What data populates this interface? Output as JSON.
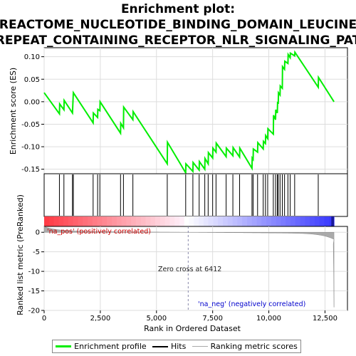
{
  "chart_data": {
    "type": "line",
    "title_lines": [
      "Enrichment plot:",
      "REACTOME_NUCLEOTIDE_BINDING_DOMAIN_LEUCINE",
      "REPEAT_CONTAINING_RECEPTOR_NLR_SIGNALING_PAT"
    ],
    "xlabel": "Rank in Ordered Dataset",
    "ylabel_top": "Enrichment score (ES)",
    "ylabel_bottom": "Ranked list metric (PreRanked)",
    "xlim": [
      0,
      13500
    ],
    "x_ticks": [
      0,
      2500,
      5000,
      7500,
      10000,
      12500
    ],
    "x_tick_labels": [
      "0",
      "2,500",
      "5,000",
      "7,500",
      "10,000",
      "12,500"
    ],
    "es_ylim": [
      -0.16,
      0.12
    ],
    "es_ticks": [
      -0.15,
      -0.1,
      -0.05,
      0.0,
      0.05,
      0.1
    ],
    "es_tick_labels": [
      "-0.15",
      "-0.10",
      "-0.05",
      "0.00",
      "0.05",
      "0.10"
    ],
    "metric_ylim": [
      -20,
      1.5
    ],
    "metric_ticks": [
      0,
      -5,
      -10,
      -15,
      -20
    ],
    "metric_tick_labels": [
      "0",
      "-5",
      "-10",
      "-15",
      "-20"
    ],
    "n_genes": 12900,
    "zero_cross": 6412,
    "zero_cross_label": "Zero cross at 6412",
    "pos_label": "'na_pos' (positively correlated)",
    "neg_label": "'na_neg' (negatively correlated)",
    "colors": {
      "es_line": "#00ee00",
      "hits": "#000000",
      "pos_label": "#cc0000",
      "neg_label": "#0000cc",
      "zero_line": "#8888aa"
    },
    "hits": [
      680,
      880,
      1260,
      1300,
      2180,
      2380,
      2480,
      3400,
      3530,
      3950,
      5480,
      6300,
      6620,
      6900,
      7150,
      7300,
      7500,
      7650,
      8100,
      8400,
      8700,
      9250,
      9300,
      9500,
      9750,
      9850,
      9950,
      10200,
      10300,
      10380,
      10420,
      10500,
      10600,
      10700,
      10850,
      10950,
      11150,
      12200
    ],
    "es_points": [
      [
        0,
        0.02
      ],
      [
        680,
        -0.027
      ],
      [
        690,
        -0.005
      ],
      [
        880,
        -0.018
      ],
      [
        890,
        0.003
      ],
      [
        1260,
        -0.025
      ],
      [
        1300,
        0.02
      ],
      [
        2180,
        -0.047
      ],
      [
        2190,
        -0.025
      ],
      [
        2380,
        -0.035
      ],
      [
        2390,
        -0.017
      ],
      [
        2480,
        -0.02
      ],
      [
        2490,
        0.0
      ],
      [
        3400,
        -0.07
      ],
      [
        3410,
        -0.048
      ],
      [
        3530,
        -0.058
      ],
      [
        3540,
        -0.012
      ],
      [
        3950,
        -0.04
      ],
      [
        3960,
        -0.022
      ],
      [
        5480,
        -0.138
      ],
      [
        5490,
        -0.09
      ],
      [
        6300,
        -0.158
      ],
      [
        6310,
        -0.138
      ],
      [
        6620,
        -0.155
      ],
      [
        6630,
        -0.135
      ],
      [
        6900,
        -0.152
      ],
      [
        6910,
        -0.133
      ],
      [
        7150,
        -0.15
      ],
      [
        7160,
        -0.126
      ],
      [
        7300,
        -0.138
      ],
      [
        7310,
        -0.113
      ],
      [
        7500,
        -0.125
      ],
      [
        7510,
        -0.103
      ],
      [
        7650,
        -0.112
      ],
      [
        7660,
        -0.092
      ],
      [
        8100,
        -0.122
      ],
      [
        8110,
        -0.103
      ],
      [
        8400,
        -0.12
      ],
      [
        8410,
        -0.102
      ],
      [
        8700,
        -0.123
      ],
      [
        8710,
        -0.103
      ],
      [
        9250,
        -0.148
      ],
      [
        9260,
        -0.125
      ],
      [
        9300,
        -0.128
      ],
      [
        9310,
        -0.105
      ],
      [
        9500,
        -0.112
      ],
      [
        9510,
        -0.091
      ],
      [
        9750,
        -0.105
      ],
      [
        9760,
        -0.088
      ],
      [
        9850,
        -0.093
      ],
      [
        9860,
        -0.075
      ],
      [
        9950,
        -0.082
      ],
      [
        9960,
        -0.06
      ],
      [
        10200,
        -0.072
      ],
      [
        10210,
        -0.03
      ],
      [
        10300,
        -0.04
      ],
      [
        10310,
        -0.018
      ],
      [
        10380,
        -0.025
      ],
      [
        10390,
        0.0
      ],
      [
        10420,
        -0.005
      ],
      [
        10430,
        0.02
      ],
      [
        10500,
        0.015
      ],
      [
        10510,
        0.035
      ],
      [
        10600,
        0.03
      ],
      [
        10610,
        0.078
      ],
      [
        10700,
        0.072
      ],
      [
        10710,
        0.09
      ],
      [
        10850,
        0.085
      ],
      [
        10860,
        0.105
      ],
      [
        10950,
        0.098
      ],
      [
        10960,
        0.108
      ],
      [
        11150,
        0.102
      ],
      [
        11160,
        0.11
      ],
      [
        12200,
        0.032
      ],
      [
        12210,
        0.054
      ],
      [
        12900,
        0.0
      ]
    ]
  }
}
